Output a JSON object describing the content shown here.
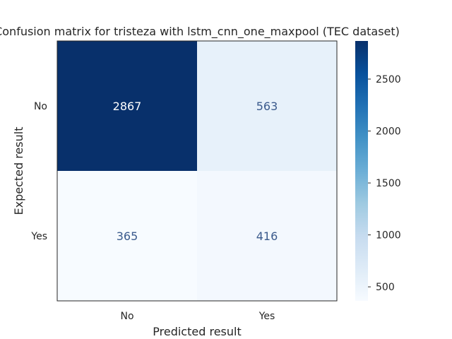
{
  "chart_data": {
    "type": "heatmap",
    "title": "Confusion matrix for tristeza with lstm_cnn_one_maxpool (TEC dataset)",
    "xlabel": "Predicted result",
    "ylabel": "Expected result",
    "x_categories": [
      "No",
      "Yes"
    ],
    "y_categories": [
      "No",
      "Yes"
    ],
    "values": [
      [
        2867,
        563
      ],
      [
        365,
        416
      ]
    ],
    "colormap": "Blues",
    "color_range": [
      365,
      2867
    ],
    "colorbar_ticks": [
      500,
      1000,
      1500,
      2000,
      2500
    ],
    "grid": false
  }
}
